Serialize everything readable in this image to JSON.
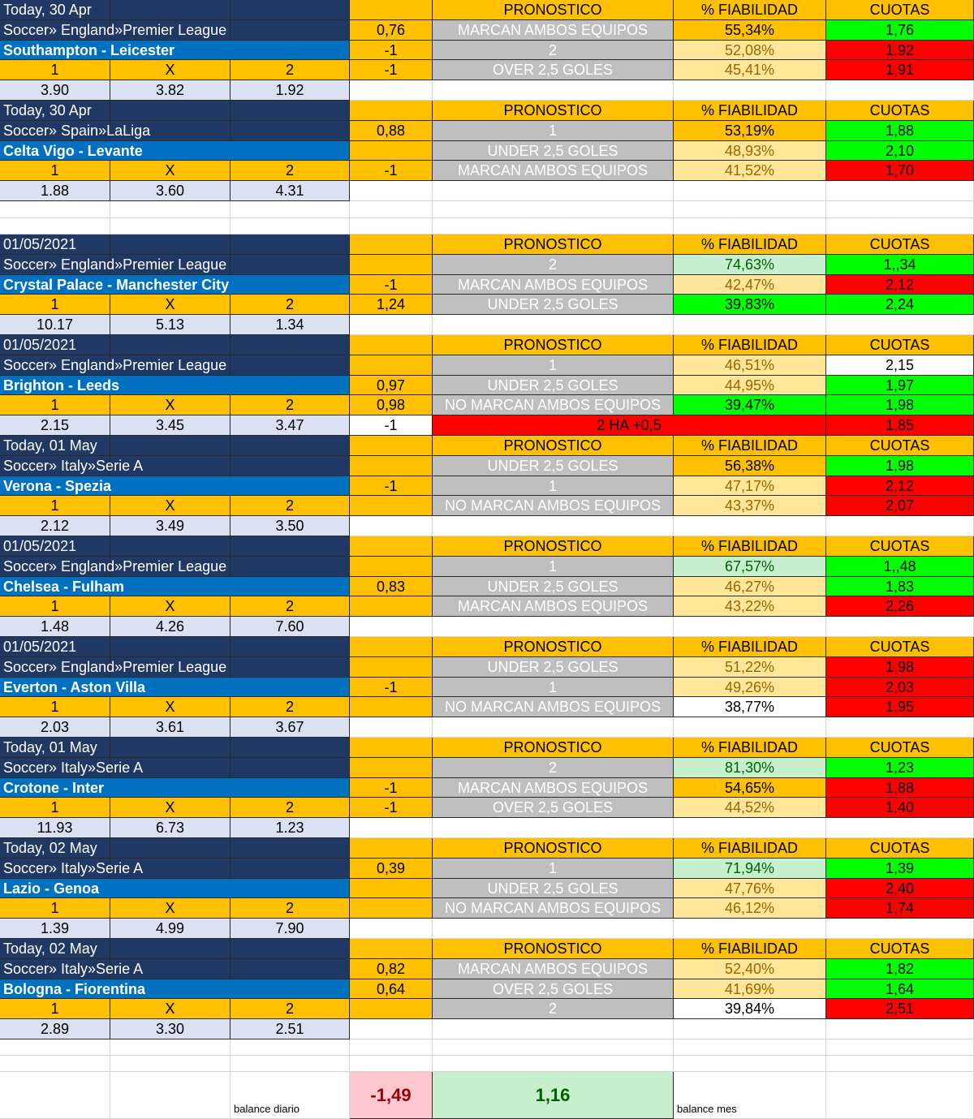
{
  "column_headers": [
    "PRONOSTICO",
    "% FIABILIDAD",
    "CUOTAS"
  ],
  "outcome_labels": [
    "1",
    "X",
    "2"
  ],
  "blocks": [
    {
      "date": "Today, 30 Apr",
      "league": "Soccer» England»Premier League",
      "match": "Southampton - Leicester",
      "odds": [
        "3.90",
        "3.82",
        "1.92"
      ],
      "d": [
        "0,76",
        "-1",
        "-1"
      ],
      "picks": [
        {
          "label": "MARCAN AMBOS EQUIPOS",
          "fiab": "55,34%",
          "fiab_style": "orange",
          "cuota": "1,76",
          "cuota_color": "green"
        },
        {
          "label": "2",
          "fiab": "52,08%",
          "fiab_style": "pale",
          "cuota": "1,92",
          "cuota_color": "red"
        },
        {
          "label": "OVER 2,5 GOLES",
          "fiab": "45,41%",
          "fiab_style": "pale",
          "cuota": "1,91",
          "cuota_color": "red"
        }
      ]
    },
    {
      "date": "Today, 30 Apr",
      "league": "Soccer» Spain»LaLiga",
      "match": "Celta Vigo - Levante",
      "odds": [
        "1.88",
        "3.60",
        "4.31"
      ],
      "d": [
        "0,88",
        null,
        "-1"
      ],
      "picks": [
        {
          "label": "1",
          "fiab": "53,19%",
          "fiab_style": "orange",
          "cuota": "1,88",
          "cuota_color": "green"
        },
        {
          "label": "UNDER 2,5 GOLES",
          "fiab": "48,93%",
          "fiab_style": "pale",
          "cuota": "2,10",
          "cuota_color": "green"
        },
        {
          "label": "MARCAN AMBOS EQUIPOS",
          "fiab": "41,52%",
          "fiab_style": "pale",
          "cuota": "1,70",
          "cuota_color": "red"
        }
      ]
    },
    {
      "date": "01/05/2021",
      "league": "Soccer» England»Premier League",
      "match": "Crystal Palace - Manchester City",
      "odds": [
        "10.17",
        "5.13",
        "1.34"
      ],
      "d": [
        null,
        "-1",
        "1,24"
      ],
      "picks": [
        {
          "label": "2",
          "fiab": "74,63%",
          "fiab_style": "green",
          "cuota": "1,,34",
          "cuota_color": "green"
        },
        {
          "label": "MARCAN AMBOS EQUIPOS",
          "fiab": "42,47%",
          "fiab_style": "pale",
          "cuota": "2,12",
          "cuota_color": "red"
        },
        {
          "label": "UNDER 2,5 GOLES",
          "fiab": "39,83%",
          "fiab_style": "bright",
          "cuota": "2,24",
          "cuota_color": "green"
        }
      ]
    },
    {
      "date": "01/05/2021",
      "league": "Soccer» England»Premier League",
      "match": "Brighton - Leeds",
      "odds": [
        "2.15",
        "3.45",
        "3.47"
      ],
      "d": [
        null,
        "0,97",
        "0,98"
      ],
      "picks": [
        {
          "label": "1",
          "fiab": "46,51%",
          "fiab_style": "pale",
          "cuota": "2,15",
          "cuota_color": "white"
        },
        {
          "label": "UNDER 2,5 GOLES",
          "fiab": "44,95%",
          "fiab_style": "pale",
          "cuota": "1,97",
          "cuota_color": "green"
        },
        {
          "label": "NO MARCAN AMBOS EQUIPOS",
          "fiab": "39,47%",
          "fiab_style": "bright",
          "cuota": "1,98",
          "cuota_color": "green"
        }
      ],
      "extra": {
        "d": "-1",
        "pick": "2 HA +0,5",
        "cuota": "1,85"
      }
    },
    {
      "date": "Today, 01 May",
      "league": "Soccer» Italy»Serie A",
      "match": "Verona - Spezia",
      "odds": [
        "2.12",
        "3.49",
        "3.50"
      ],
      "d": [
        null,
        "-1",
        null
      ],
      "picks": [
        {
          "label": "UNDER 2,5 GOLES",
          "fiab": "56,38%",
          "fiab_style": "orange",
          "cuota": "1,98",
          "cuota_color": "green"
        },
        {
          "label": "1",
          "fiab": "47,17%",
          "fiab_style": "pale",
          "cuota": "2,12",
          "cuota_color": "red"
        },
        {
          "label": "NO MARCAN AMBOS EQUIPOS",
          "fiab": "43,37%",
          "fiab_style": "pale",
          "cuota": "2,07",
          "cuota_color": "red"
        }
      ]
    },
    {
      "date": "01/05/2021",
      "league": "Soccer» England»Premier League",
      "match": "Chelsea - Fulham",
      "odds": [
        "1.48",
        "4.26",
        "7.60"
      ],
      "d": [
        null,
        "0,83",
        null
      ],
      "picks": [
        {
          "label": "1",
          "fiab": "67,57%",
          "fiab_style": "green",
          "cuota": "1,,48",
          "cuota_color": "green"
        },
        {
          "label": "UNDER 2,5 GOLES",
          "fiab": "46,27%",
          "fiab_style": "pale",
          "cuota": "1,83",
          "cuota_color": "green"
        },
        {
          "label": "MARCAN AMBOS EQUIPOS",
          "fiab": "43,22%",
          "fiab_style": "pale",
          "cuota": "2,26",
          "cuota_color": "red"
        }
      ]
    },
    {
      "date": "01/05/2021",
      "league": "Soccer» England»Premier League",
      "match": "Everton - Aston Villa",
      "odds": [
        "2.03",
        "3.61",
        "3.67"
      ],
      "d": [
        null,
        "-1",
        null
      ],
      "picks": [
        {
          "label": "UNDER 2,5 GOLES",
          "fiab": "51,22%",
          "fiab_style": "pale",
          "cuota": "1,98",
          "cuota_color": "red"
        },
        {
          "label": "1",
          "fiab": "49,26%",
          "fiab_style": "pale",
          "cuota": "2,03",
          "cuota_color": "red"
        },
        {
          "label": "NO MARCAN AMBOS EQUIPOS",
          "fiab": "38,77%",
          "fiab_style": "white",
          "cuota": "1,95",
          "cuota_color": "red"
        }
      ]
    },
    {
      "date": "Today, 01 May",
      "league": "Soccer» Italy»Serie A",
      "match": "Crotone - Inter",
      "odds": [
        "11.93",
        "6.73",
        "1.23"
      ],
      "d": [
        null,
        "-1",
        "-1"
      ],
      "picks": [
        {
          "label": "2",
          "fiab": "81,30%",
          "fiab_style": "green",
          "cuota": "1,23",
          "cuota_color": "green"
        },
        {
          "label": "MARCAN AMBOS EQUIPOS",
          "fiab": "54,65%",
          "fiab_style": "orange",
          "cuota": "1,88",
          "cuota_color": "red"
        },
        {
          "label": "OVER 2,5 GOLES",
          "fiab": "44,52%",
          "fiab_style": "pale",
          "cuota": "1,40",
          "cuota_color": "red"
        }
      ]
    },
    {
      "date": "Today, 02 May",
      "league": "Soccer» Italy»Serie A",
      "match": "Lazio - Genoa",
      "odds": [
        "1.39",
        "4.99",
        "7.90"
      ],
      "d": [
        "0,39",
        null,
        null
      ],
      "picks": [
        {
          "label": "1",
          "fiab": "71,94%",
          "fiab_style": "green",
          "cuota": "1,39",
          "cuota_color": "green"
        },
        {
          "label": "UNDER 2,5 GOLES",
          "fiab": "47,76%",
          "fiab_style": "pale",
          "cuota": "2,40",
          "cuota_color": "red"
        },
        {
          "label": "NO MARCAN AMBOS EQUIPOS",
          "fiab": "46,12%",
          "fiab_style": "pale",
          "cuota": "1,74",
          "cuota_color": "red"
        }
      ]
    },
    {
      "date": "Today, 02 May",
      "league": "Soccer» Italy»Serie A",
      "match": "Bologna - Fiorentina",
      "odds": [
        "2.89",
        "3.30",
        "2.51"
      ],
      "d": [
        "0,82",
        "0,64",
        null
      ],
      "picks": [
        {
          "label": "MARCAN AMBOS EQUIPOS",
          "fiab": "52,40%",
          "fiab_style": "pale",
          "cuota": "1,82",
          "cuota_color": "green"
        },
        {
          "label": "OVER 2,5 GOLES",
          "fiab": "41,69%",
          "fiab_style": "pale",
          "cuota": "1,64",
          "cuota_color": "green"
        },
        {
          "label": "2",
          "fiab": "39,84%",
          "fiab_style": "white",
          "cuota": "2,51",
          "cuota_color": "red"
        }
      ]
    }
  ],
  "footer": {
    "daily_label": "balance diario",
    "daily_value": "-1,49",
    "month_value": "1,16",
    "month_label": "balance mes"
  }
}
